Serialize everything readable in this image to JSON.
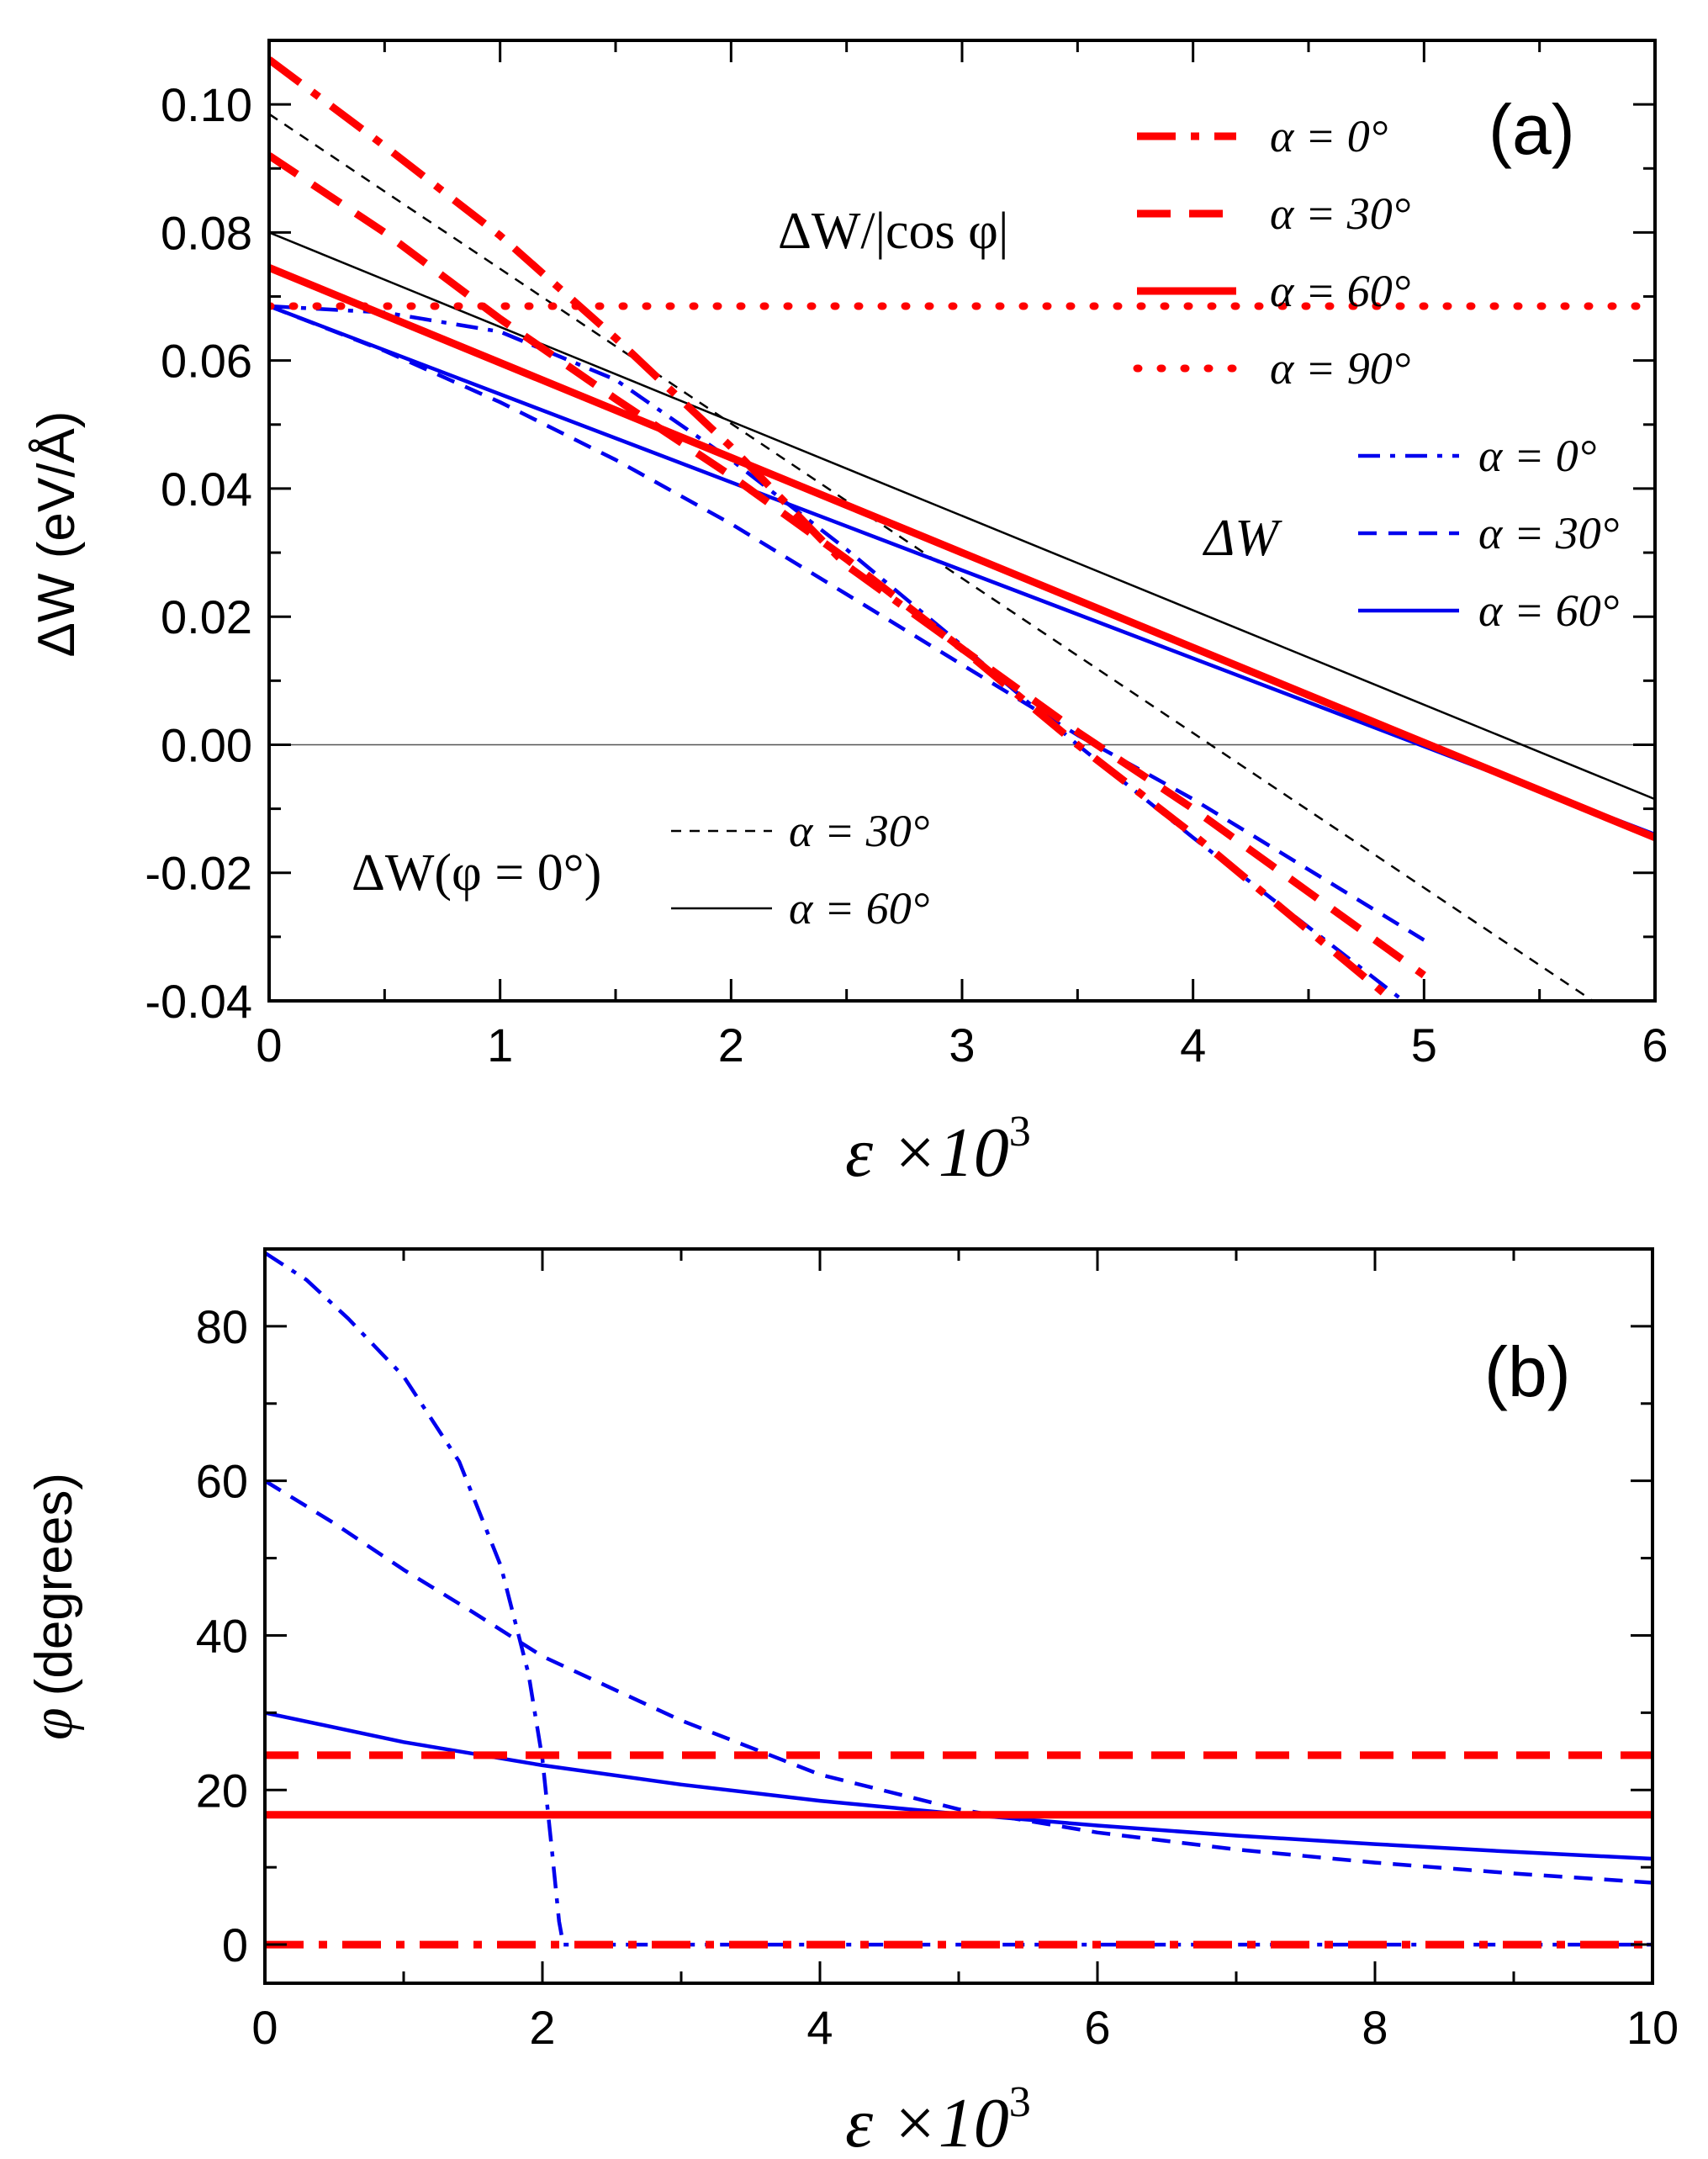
{
  "chart_data": [
    {
      "panel": "(a)",
      "type": "line",
      "xlabel": "ε ×10",
      "xlabel_sup": "3",
      "ylabel": "ΔW (eV/Å)",
      "xlim": [
        0,
        6
      ],
      "ylim": [
        -0.04,
        0.11
      ],
      "xticks": [
        "0",
        "1",
        "2",
        "3",
        "4",
        "5",
        "6"
      ],
      "yticks": [
        "-0.04",
        "-0.02",
        "0.00",
        "0.02",
        "0.04",
        "0.06",
        "0.08",
        "0.10"
      ],
      "ytick_values": [
        -0.04,
        -0.02,
        0.0,
        0.02,
        0.04,
        0.06,
        0.08,
        0.1
      ],
      "grid": false,
      "reference_line_y": 0,
      "annotations": {
        "red_group": "ΔW/|cos φ|",
        "blue_group": "ΔW",
        "black_group": "ΔW(φ = 0°)"
      },
      "series": [
        {
          "group": "red",
          "legend": "α = 0°",
          "style": "dash-dot",
          "color": "#ff0000",
          "weight": "thick",
          "x": [
            0,
            0.5,
            1.0,
            1.5,
            2.0,
            2.5,
            3.0,
            3.5,
            4.0,
            4.5,
            5.0
          ],
          "y": [
            0.107,
            0.0935,
            0.0795,
            0.0635,
            0.0465,
            0.028,
            0.015,
            0.0,
            -0.014,
            -0.029,
            -0.044
          ]
        },
        {
          "group": "red",
          "legend": "α = 30°",
          "style": "dashed",
          "color": "#ff0000",
          "weight": "thick",
          "x": [
            0,
            0.5,
            1.0,
            1.5,
            2.0,
            2.5,
            3.0,
            3.5,
            4.0,
            4.5,
            5.0
          ],
          "y": [
            0.092,
            0.08,
            0.0665,
            0.054,
            0.042,
            0.029,
            0.015,
            0.002,
            -0.01,
            -0.023,
            -0.036
          ]
        },
        {
          "group": "red",
          "legend": "α = 60°",
          "style": "solid",
          "color": "#ff0000",
          "weight": "thick",
          "x": [
            0,
            6
          ],
          "y": [
            0.0745,
            -0.0145
          ]
        },
        {
          "group": "red",
          "legend": "α = 90°",
          "style": "dotted",
          "color": "#ff0000",
          "weight": "thick",
          "x": [
            0,
            6
          ],
          "y": [
            0.0685,
            0.0685
          ]
        },
        {
          "group": "blue",
          "legend": "α = 0°",
          "style": "dash-dot",
          "color": "#0000ee",
          "weight": "thin",
          "x": [
            0,
            0.5,
            1.0,
            1.5,
            2.0,
            2.5,
            3.0,
            3.5,
            4.0,
            4.5,
            5.0
          ],
          "y": [
            0.0685,
            0.0675,
            0.0645,
            0.057,
            0.0445,
            0.0305,
            0.0155,
            0.0,
            -0.0145,
            -0.0285,
            -0.0425
          ]
        },
        {
          "group": "blue",
          "legend": "α = 30°",
          "style": "dashed",
          "color": "#0000ee",
          "weight": "thin",
          "x": [
            0,
            0.5,
            1.0,
            1.5,
            2.0,
            2.5,
            3.0,
            3.5,
            4.0,
            4.5,
            5.0
          ],
          "y": [
            0.0685,
            0.0615,
            0.0535,
            0.0445,
            0.0345,
            0.0235,
            0.0125,
            0.0015,
            -0.0085,
            -0.0195,
            -0.0305
          ]
        },
        {
          "group": "blue",
          "legend": "α = 60°",
          "style": "solid",
          "color": "#0000ee",
          "weight": "thin",
          "x": [
            0,
            6
          ],
          "y": [
            0.0685,
            -0.014
          ]
        },
        {
          "group": "black",
          "legend": "α = 30°",
          "style": "dashed",
          "color": "#000000",
          "weight": "hair",
          "x": [
            0,
            6
          ],
          "y": [
            0.0985,
            -0.0465
          ]
        },
        {
          "group": "black",
          "legend": "α = 60°",
          "style": "solid",
          "color": "#000000",
          "weight": "hair",
          "x": [
            0,
            6
          ],
          "y": [
            0.08,
            -0.0085
          ]
        }
      ]
    },
    {
      "panel": "(b)",
      "type": "line",
      "xlabel": "ε ×10",
      "xlabel_sup": "3",
      "ylabel": "(degrees)",
      "ylabel_symbol": "φ",
      "xlim": [
        0,
        10
      ],
      "ylim": [
        -5,
        90
      ],
      "xticks": [
        "0",
        "2",
        "4",
        "6",
        "8",
        "10"
      ],
      "xtick_values": [
        0,
        2,
        4,
        6,
        8,
        10
      ],
      "yticks": [
        "0",
        "20",
        "40",
        "60",
        "80"
      ],
      "ytick_values": [
        0,
        20,
        40,
        60,
        80
      ],
      "grid": false,
      "series": [
        {
          "group": "red",
          "style": "dash-dot",
          "color": "#ff0000",
          "weight": "thick",
          "x": [
            0,
            10
          ],
          "y": [
            0,
            0
          ]
        },
        {
          "group": "red",
          "style": "dashed",
          "color": "#ff0000",
          "weight": "thick",
          "x": [
            0,
            10
          ],
          "y": [
            24.5,
            24.5
          ]
        },
        {
          "group": "red",
          "style": "solid",
          "color": "#ff0000",
          "weight": "thick",
          "x": [
            0,
            10
          ],
          "y": [
            16.8,
            16.8
          ]
        },
        {
          "group": "blue",
          "style": "dash-dot",
          "color": "#0000ee",
          "weight": "thin",
          "x": [
            0,
            0.3,
            0.6,
            1.0,
            1.4,
            1.7,
            1.9,
            2.0,
            2.07,
            2.12,
            2.15,
            3,
            5,
            7,
            10
          ],
          "y": [
            89.5,
            86,
            81,
            73.5,
            62.5,
            49,
            35,
            24,
            12,
            3,
            0,
            0,
            0,
            0,
            0
          ]
        },
        {
          "group": "blue",
          "style": "dashed",
          "color": "#0000ee",
          "weight": "thin",
          "x": [
            0,
            0.5,
            1.0,
            1.5,
            2.0,
            3.0,
            4.0,
            5.0,
            6.0,
            7.0,
            8.0,
            9.0,
            10.0
          ],
          "y": [
            60,
            54.5,
            48.5,
            43,
            37.3,
            29,
            22,
            17.5,
            14.5,
            12.3,
            10.6,
            9.2,
            8
          ]
        },
        {
          "group": "blue",
          "style": "solid",
          "color": "#0000ee",
          "weight": "thin",
          "x": [
            0,
            1,
            2,
            3,
            4,
            5,
            6,
            7,
            8,
            9,
            10
          ],
          "y": [
            30,
            26.2,
            23.2,
            20.7,
            18.6,
            16.9,
            15.4,
            14.1,
            13,
            12,
            11.1
          ]
        }
      ]
    }
  ]
}
